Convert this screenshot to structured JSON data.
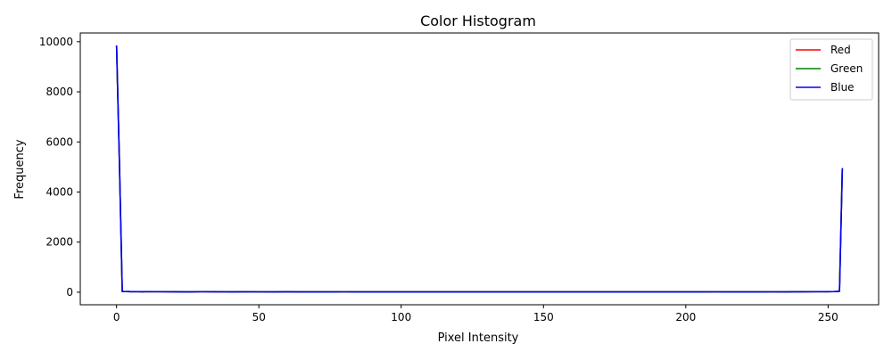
{
  "chart_data": {
    "type": "line",
    "title": "Color Histogram",
    "xlabel": "Pixel Intensity",
    "ylabel": "Frequency",
    "xlim": [
      -12.75,
      267.75
    ],
    "ylim": [
      -500,
      10350
    ],
    "xticks": [
      0,
      50,
      100,
      150,
      200,
      250
    ],
    "yticks": [
      0,
      2000,
      4000,
      6000,
      8000,
      10000
    ],
    "grid": false,
    "legend_position": "top-right",
    "x": [
      0,
      1,
      2,
      3,
      4,
      5,
      6,
      7,
      8,
      9,
      10,
      15,
      20,
      25,
      30,
      35,
      40,
      45,
      50,
      55,
      60,
      65,
      70,
      75,
      80,
      85,
      90,
      95,
      100,
      105,
      110,
      115,
      120,
      125,
      130,
      135,
      140,
      145,
      150,
      155,
      160,
      165,
      170,
      175,
      180,
      185,
      190,
      195,
      200,
      205,
      210,
      215,
      220,
      225,
      230,
      235,
      240,
      245,
      250,
      252,
      253,
      254,
      255
    ],
    "series": [
      {
        "name": "Red",
        "color": "#ff0000",
        "values": [
          9850,
          5200,
          30,
          25,
          28,
          22,
          24,
          20,
          25,
          18,
          22,
          20,
          18,
          15,
          20,
          18,
          15,
          18,
          16,
          15,
          18,
          14,
          15,
          14,
          16,
          12,
          14,
          15,
          13,
          14,
          15,
          14,
          15,
          14,
          13,
          14,
          15,
          14,
          13,
          14,
          15,
          14,
          13,
          14,
          15,
          14,
          13,
          15,
          14,
          15,
          16,
          15,
          14,
          15,
          16,
          15,
          18,
          20,
          22,
          25,
          30,
          40,
          4950
        ]
      },
      {
        "name": "Green",
        "color": "#008000",
        "values": [
          9850,
          5200,
          30,
          25,
          28,
          22,
          24,
          20,
          25,
          18,
          22,
          20,
          18,
          15,
          20,
          18,
          15,
          18,
          16,
          15,
          18,
          14,
          15,
          14,
          16,
          12,
          14,
          15,
          13,
          14,
          15,
          14,
          15,
          14,
          13,
          14,
          15,
          14,
          13,
          14,
          15,
          14,
          13,
          14,
          15,
          14,
          13,
          15,
          14,
          15,
          16,
          15,
          14,
          15,
          16,
          15,
          18,
          20,
          22,
          25,
          30,
          40,
          4950
        ]
      },
      {
        "name": "Blue",
        "color": "#0000ff",
        "values": [
          9850,
          5200,
          30,
          25,
          28,
          22,
          24,
          20,
          25,
          18,
          22,
          20,
          18,
          15,
          20,
          18,
          15,
          18,
          16,
          15,
          18,
          14,
          15,
          14,
          16,
          12,
          14,
          15,
          13,
          14,
          15,
          14,
          15,
          14,
          13,
          14,
          15,
          14,
          13,
          14,
          15,
          14,
          13,
          14,
          15,
          14,
          13,
          15,
          14,
          15,
          16,
          15,
          14,
          15,
          16,
          15,
          18,
          20,
          22,
          25,
          30,
          40,
          4950
        ]
      }
    ]
  }
}
